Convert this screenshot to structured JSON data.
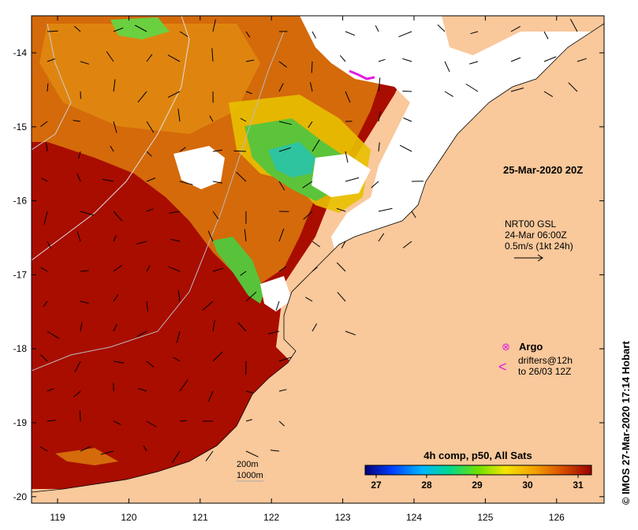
{
  "map": {
    "overlay_date": "25-Mar-2020 20Z",
    "current_label_line1": "NRT00 GSL",
    "current_label_line2": "24-Mar 06:00Z",
    "current_label_line3": "0.5m/s (1kt 24h)",
    "legend_argo": "Argo",
    "legend_drifters_line1": "drifters@12h",
    "legend_drifters_line2": "to 26/03 12Z",
    "legend_argo_symbol": "⊗",
    "legend_drifters_symbol": "<",
    "depth_200": "200m",
    "depth_1000": "1000m",
    "credit": "© IMOS 27-Mar-2020 17:14 Hobart",
    "colorbar_title": "4h comp, p50, All Sats",
    "colorbar_ticks": [
      "27",
      "28",
      "29",
      "30",
      "31"
    ],
    "x_ticks": [
      "119",
      "120",
      "121",
      "122",
      "123",
      "124",
      "125",
      "126"
    ],
    "y_ticks": [
      "-14",
      "-15",
      "-16",
      "-17",
      "-18",
      "-19",
      "-20"
    ],
    "colors": {
      "land": "#f9c89b",
      "warm": "#a80d00",
      "orange": "#d96a00",
      "yellow": "#f0c200",
      "green": "#58c23a",
      "cyan": "#2cc6a0",
      "blue": "#1b5fd8",
      "magenta": "#e01ce0"
    }
  }
}
